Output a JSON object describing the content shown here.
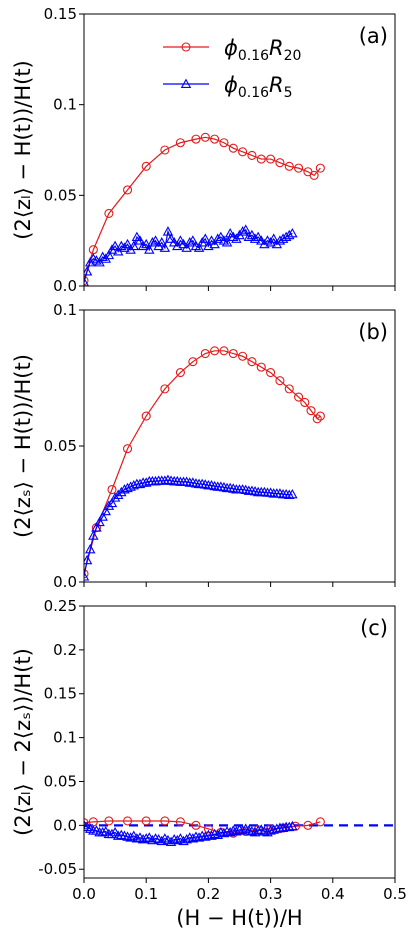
{
  "chart_data": [
    {
      "type": "line",
      "panel_label": "(a)",
      "ylabel": "⟨2⟨z_l⟩ − H(t)⟩/H(t)",
      "ylabel_display": "(2⟨zₗ⟩ − H(t))/H(t)",
      "ylim": [
        0,
        0.15
      ],
      "yticks": [
        0,
        0.05,
        0.1,
        0.15
      ],
      "ytick_labels": [
        "0.0",
        "0.05",
        "0.1",
        "0.15"
      ],
      "xlim": [
        0,
        0.5
      ],
      "legend": {
        "placement": "top-center",
        "entries": [
          {
            "base": "ϕ",
            "sub1": "0.16",
            "mid": "R",
            "sub2": "20",
            "color": "#e31a1c",
            "marker": "circle"
          },
          {
            "base": "ϕ",
            "sub1": "0.16",
            "mid": "R",
            "sub2": "5",
            "color": "#0000ff",
            "marker": "triangle"
          }
        ]
      },
      "series": [
        {
          "name": "ϕ0.16R20",
          "color": "#e31a1c",
          "marker": "circle",
          "x": [
            0.0,
            0.015,
            0.04,
            0.07,
            0.1,
            0.13,
            0.155,
            0.18,
            0.195,
            0.21,
            0.225,
            0.24,
            0.255,
            0.27,
            0.285,
            0.3,
            0.315,
            0.33,
            0.345,
            0.36,
            0.37,
            0.38
          ],
          "y": [
            0.003,
            0.02,
            0.04,
            0.053,
            0.066,
            0.075,
            0.079,
            0.081,
            0.082,
            0.081,
            0.079,
            0.076,
            0.074,
            0.072,
            0.07,
            0.07,
            0.068,
            0.066,
            0.065,
            0.063,
            0.061,
            0.065
          ]
        },
        {
          "name": "ϕ0.16R5",
          "color": "#0000ff",
          "marker": "triangle",
          "x": [
            0.0,
            0.005,
            0.01,
            0.015,
            0.02,
            0.025,
            0.03,
            0.035,
            0.04,
            0.045,
            0.05,
            0.055,
            0.06,
            0.065,
            0.07,
            0.075,
            0.08,
            0.085,
            0.09,
            0.095,
            0.1,
            0.105,
            0.11,
            0.115,
            0.12,
            0.125,
            0.13,
            0.135,
            0.14,
            0.145,
            0.15,
            0.155,
            0.16,
            0.165,
            0.17,
            0.175,
            0.18,
            0.185,
            0.19,
            0.195,
            0.2,
            0.205,
            0.21,
            0.215,
            0.22,
            0.225,
            0.23,
            0.235,
            0.24,
            0.245,
            0.25,
            0.255,
            0.26,
            0.265,
            0.27,
            0.275,
            0.28,
            0.285,
            0.29,
            0.295,
            0.3,
            0.305,
            0.31,
            0.315,
            0.32,
            0.325,
            0.33,
            0.335
          ],
          "y": [
            0.002,
            0.008,
            0.013,
            0.015,
            0.014,
            0.013,
            0.016,
            0.015,
            0.017,
            0.02,
            0.022,
            0.019,
            0.022,
            0.021,
            0.023,
            0.02,
            0.022,
            0.027,
            0.025,
            0.022,
            0.023,
            0.02,
            0.024,
            0.025,
            0.022,
            0.024,
            0.021,
            0.03,
            0.026,
            0.024,
            0.022,
            0.025,
            0.023,
            0.021,
            0.024,
            0.025,
            0.022,
            0.021,
            0.024,
            0.026,
            0.022,
            0.025,
            0.023,
            0.026,
            0.027,
            0.025,
            0.024,
            0.029,
            0.027,
            0.026,
            0.028,
            0.03,
            0.031,
            0.027,
            0.028,
            0.026,
            0.027,
            0.025,
            0.023,
            0.025,
            0.024,
            0.026,
            0.023,
            0.025,
            0.026,
            0.027,
            0.028,
            0.029
          ]
        }
      ]
    },
    {
      "type": "line",
      "panel_label": "(b)",
      "ylabel_display": "(2⟨zₛ⟩ − H(t))/H(t)",
      "ylim": [
        0,
        0.1
      ],
      "yticks": [
        0,
        0.05,
        0.1
      ],
      "ytick_labels": [
        "0.0",
        "0.05",
        "0.1"
      ],
      "xlim": [
        0,
        0.5
      ],
      "series": [
        {
          "name": "ϕ0.16R20",
          "color": "#e31a1c",
          "marker": "circle",
          "x": [
            0.0,
            0.02,
            0.045,
            0.07,
            0.1,
            0.13,
            0.155,
            0.175,
            0.195,
            0.21,
            0.225,
            0.24,
            0.255,
            0.27,
            0.285,
            0.3,
            0.315,
            0.33,
            0.345,
            0.355,
            0.365,
            0.375,
            0.38
          ],
          "y": [
            0.003,
            0.02,
            0.034,
            0.049,
            0.061,
            0.071,
            0.077,
            0.081,
            0.084,
            0.085,
            0.085,
            0.084,
            0.083,
            0.081,
            0.079,
            0.077,
            0.074,
            0.071,
            0.068,
            0.066,
            0.063,
            0.06,
            0.061
          ]
        },
        {
          "name": "ϕ0.16R5",
          "color": "#0000ff",
          "marker": "triangle",
          "x": [
            0.0,
            0.005,
            0.01,
            0.015,
            0.02,
            0.025,
            0.03,
            0.035,
            0.04,
            0.045,
            0.05,
            0.055,
            0.06,
            0.065,
            0.07,
            0.075,
            0.08,
            0.085,
            0.09,
            0.095,
            0.1,
            0.105,
            0.11,
            0.115,
            0.12,
            0.125,
            0.13,
            0.135,
            0.14,
            0.145,
            0.15,
            0.155,
            0.16,
            0.165,
            0.17,
            0.175,
            0.18,
            0.185,
            0.19,
            0.195,
            0.2,
            0.205,
            0.21,
            0.215,
            0.22,
            0.225,
            0.23,
            0.235,
            0.24,
            0.245,
            0.25,
            0.255,
            0.26,
            0.265,
            0.27,
            0.275,
            0.28,
            0.285,
            0.29,
            0.295,
            0.3,
            0.305,
            0.31,
            0.315,
            0.32,
            0.325,
            0.33,
            0.335
          ],
          "y": [
            0.002,
            0.008,
            0.012,
            0.017,
            0.02,
            0.022,
            0.024,
            0.026,
            0.028,
            0.029,
            0.031,
            0.032,
            0.033,
            0.034,
            0.0345,
            0.035,
            0.0355,
            0.036,
            0.036,
            0.0365,
            0.0365,
            0.037,
            0.037,
            0.037,
            0.0372,
            0.0372,
            0.0372,
            0.0375,
            0.0372,
            0.037,
            0.037,
            0.0368,
            0.0368,
            0.0368,
            0.0365,
            0.0365,
            0.0362,
            0.036,
            0.036,
            0.0358,
            0.0355,
            0.0355,
            0.0352,
            0.035,
            0.035,
            0.0348,
            0.0345,
            0.0345,
            0.0343,
            0.034,
            0.034,
            0.034,
            0.0338,
            0.0335,
            0.0335,
            0.0333,
            0.033,
            0.033,
            0.033,
            0.0328,
            0.0328,
            0.0325,
            0.0325,
            0.0325,
            0.0322,
            0.0322,
            0.032,
            0.0322
          ]
        }
      ]
    },
    {
      "type": "line",
      "panel_label": "(c)",
      "ylabel_display": "(2⟨zₗ⟩ − 2⟨zₛ⟩)/H(t)",
      "xlabel": "(H − H(t))/H",
      "ylim": [
        -0.06,
        0.25
      ],
      "yticks": [
        -0.05,
        0.0,
        0.05,
        0.1,
        0.15,
        0.2,
        0.25
      ],
      "ytick_labels": [
        "-0.05",
        "0.0",
        "0.05",
        "0.1",
        "0.15",
        "0.2",
        "0.25"
      ],
      "xlim": [
        0,
        0.5
      ],
      "xticks": [
        0,
        0.1,
        0.2,
        0.3,
        0.4,
        0.5
      ],
      "xtick_labels": [
        "0.0",
        "0.1",
        "0.2",
        "0.3",
        "0.4",
        "0.5"
      ],
      "reference_line": {
        "y": 0.0,
        "style": "dashed",
        "color": "#0000ff"
      },
      "series": [
        {
          "name": "ϕ0.16R20",
          "color": "#e31a1c",
          "marker": "circle",
          "x": [
            0.0,
            0.015,
            0.04,
            0.07,
            0.1,
            0.13,
            0.155,
            0.18,
            0.2,
            0.22,
            0.24,
            0.26,
            0.28,
            0.3,
            0.32,
            0.34,
            0.36,
            0.38
          ],
          "y": [
            0.003,
            0.004,
            0.005,
            0.005,
            0.005,
            0.005,
            0.004,
            0.0,
            -0.004,
            -0.008,
            -0.009,
            -0.007,
            -0.005,
            -0.004,
            -0.003,
            -0.001,
            0.0,
            0.004
          ]
        },
        {
          "name": "ϕ0.16R5",
          "color": "#0000ff",
          "marker": "triangle",
          "x": [
            0.0,
            0.005,
            0.01,
            0.015,
            0.02,
            0.025,
            0.03,
            0.035,
            0.04,
            0.045,
            0.05,
            0.055,
            0.06,
            0.065,
            0.07,
            0.075,
            0.08,
            0.085,
            0.09,
            0.095,
            0.1,
            0.105,
            0.11,
            0.115,
            0.12,
            0.125,
            0.13,
            0.135,
            0.14,
            0.145,
            0.15,
            0.155,
            0.16,
            0.165,
            0.17,
            0.175,
            0.18,
            0.185,
            0.19,
            0.195,
            0.2,
            0.205,
            0.21,
            0.215,
            0.22,
            0.225,
            0.23,
            0.235,
            0.24,
            0.245,
            0.25,
            0.255,
            0.26,
            0.265,
            0.27,
            0.275,
            0.28,
            0.285,
            0.29,
            0.295,
            0.3,
            0.305,
            0.31,
            0.315,
            0.32,
            0.325,
            0.33,
            0.335
          ],
          "y": [
            0.0,
            -0.002,
            -0.004,
            -0.006,
            -0.006,
            -0.008,
            -0.008,
            -0.007,
            -0.01,
            -0.01,
            -0.008,
            -0.012,
            -0.011,
            -0.012,
            -0.013,
            -0.014,
            -0.012,
            -0.015,
            -0.014,
            -0.016,
            -0.015,
            -0.014,
            -0.017,
            -0.015,
            -0.016,
            -0.018,
            -0.015,
            -0.017,
            -0.019,
            -0.016,
            -0.017,
            -0.015,
            -0.018,
            -0.016,
            -0.014,
            -0.015,
            -0.013,
            -0.014,
            -0.012,
            -0.013,
            -0.011,
            -0.012,
            -0.01,
            -0.011,
            -0.008,
            -0.009,
            -0.007,
            -0.008,
            -0.006,
            -0.007,
            -0.005,
            -0.006,
            -0.004,
            -0.006,
            -0.007,
            -0.008,
            -0.006,
            -0.005,
            -0.007,
            -0.008,
            -0.006,
            -0.005,
            -0.004,
            -0.003,
            -0.003,
            -0.002,
            -0.002,
            -0.001
          ]
        }
      ]
    }
  ]
}
